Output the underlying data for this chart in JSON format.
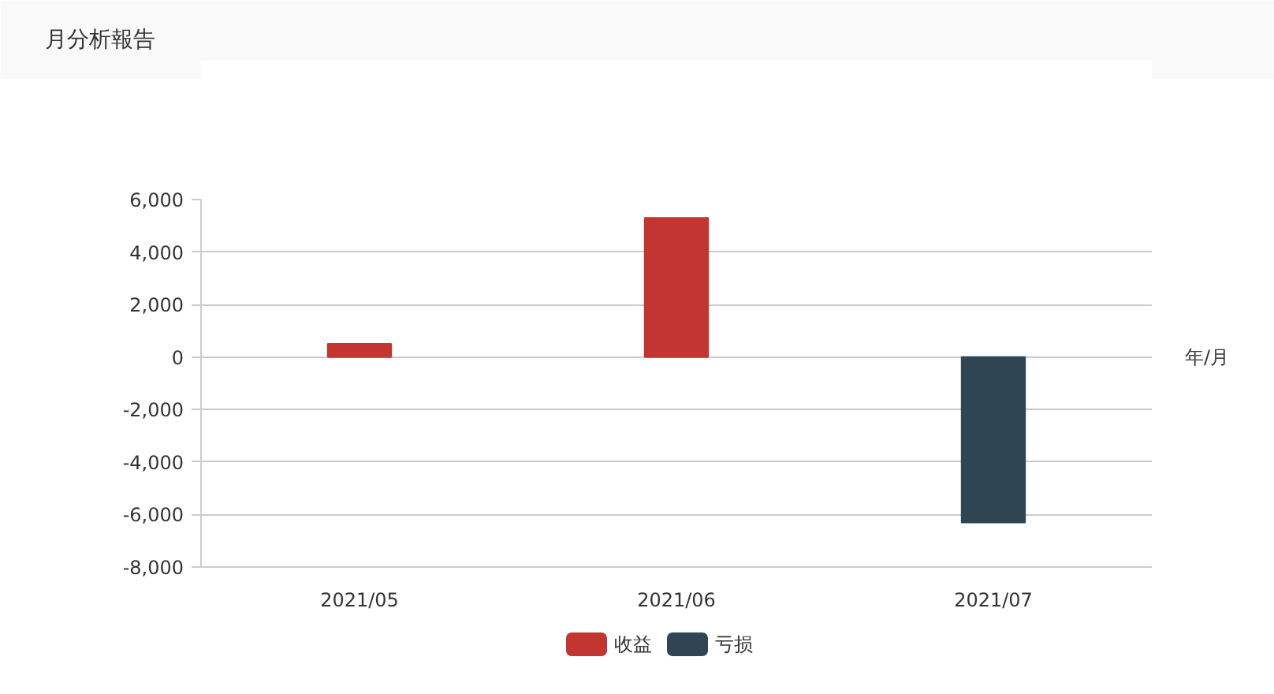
{
  "chart_data": {
    "type": "bar",
    "title": "月分析報告",
    "xlabel": "年/月",
    "categories": [
      "2021/05",
      "2021/06",
      "2021/07"
    ],
    "stacked": true,
    "series": [
      {
        "name": "收益",
        "color": "#c23531",
        "values": [
          500,
          5300,
          null
        ]
      },
      {
        "name": "亏损",
        "color": "#2f4554",
        "values": [
          null,
          null,
          -6300
        ]
      }
    ],
    "ylim": [
      -8000,
      6000
    ],
    "yticks": [
      {
        "value": -8000,
        "label": "-8,000"
      },
      {
        "value": -6000,
        "label": "-6,000"
      },
      {
        "value": -4000,
        "label": "-4,000"
      },
      {
        "value": -2000,
        "label": "-2,000"
      },
      0,
      {
        "value": 2000,
        "label": "2,000"
      },
      {
        "value": 4000,
        "label": "4,000"
      },
      {
        "value": 6000,
        "label": "6,000"
      }
    ],
    "grid": "y",
    "legend": "bottom"
  }
}
